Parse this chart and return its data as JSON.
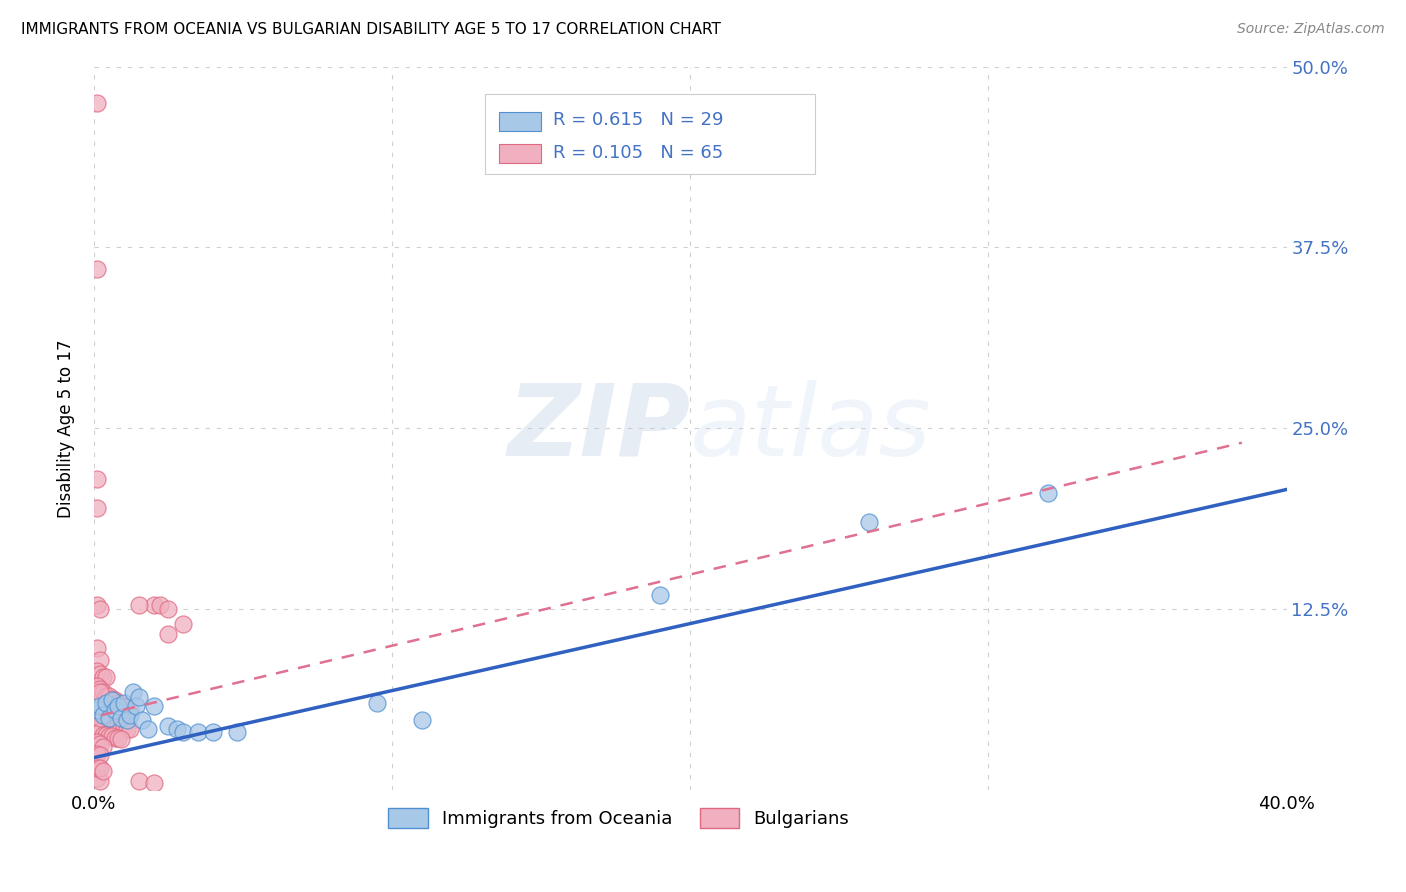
{
  "title": "IMMIGRANTS FROM OCEANIA VS BULGARIAN DISABILITY AGE 5 TO 17 CORRELATION CHART",
  "source": "Source: ZipAtlas.com",
  "ylabel": "Disability Age 5 to 17",
  "legend_label_1": "Immigrants from Oceania",
  "legend_label_2": "Bulgarians",
  "R1": 0.615,
  "N1": 29,
  "R2": 0.105,
  "N2": 65,
  "xlim": [
    0.0,
    0.4
  ],
  "ylim": [
    0.0,
    0.5
  ],
  "xticks": [
    0.0,
    0.1,
    0.2,
    0.3,
    0.4
  ],
  "xtick_labels": [
    "0.0%",
    "",
    "",
    "",
    "40.0%"
  ],
  "yticks": [
    0.0,
    0.125,
    0.25,
    0.375,
    0.5
  ],
  "ytick_labels": [
    "",
    "12.5%",
    "25.0%",
    "37.5%",
    "50.0%"
  ],
  "color_blue": "#a8c8e8",
  "color_pink": "#f0b0c0",
  "color_blue_edge": "#5090d0",
  "color_pink_edge": "#e06880",
  "color_blue_line": "#3060c0",
  "color_pink_line": "#e07090",
  "color_axis_right": "#4472c4",
  "background": "#ffffff",
  "grid_color": "#d0d0d0",
  "scatter_blue": [
    [
      0.001,
      0.055
    ],
    [
      0.002,
      0.058
    ],
    [
      0.003,
      0.052
    ],
    [
      0.004,
      0.06
    ],
    [
      0.005,
      0.05
    ],
    [
      0.006,
      0.062
    ],
    [
      0.007,
      0.055
    ],
    [
      0.008,
      0.058
    ],
    [
      0.009,
      0.05
    ],
    [
      0.01,
      0.06
    ],
    [
      0.011,
      0.048
    ],
    [
      0.012,
      0.052
    ],
    [
      0.013,
      0.068
    ],
    [
      0.014,
      0.058
    ],
    [
      0.015,
      0.064
    ],
    [
      0.016,
      0.048
    ],
    [
      0.018,
      0.042
    ],
    [
      0.02,
      0.058
    ],
    [
      0.025,
      0.044
    ],
    [
      0.028,
      0.042
    ],
    [
      0.03,
      0.04
    ],
    [
      0.035,
      0.04
    ],
    [
      0.04,
      0.04
    ],
    [
      0.048,
      0.04
    ],
    [
      0.095,
      0.06
    ],
    [
      0.11,
      0.048
    ],
    [
      0.19,
      0.135
    ],
    [
      0.26,
      0.185
    ],
    [
      0.32,
      0.205
    ]
  ],
  "scatter_pink": [
    [
      0.001,
      0.475
    ],
    [
      0.001,
      0.36
    ],
    [
      0.001,
      0.215
    ],
    [
      0.001,
      0.195
    ],
    [
      0.001,
      0.128
    ],
    [
      0.002,
      0.125
    ],
    [
      0.001,
      0.098
    ],
    [
      0.002,
      0.09
    ],
    [
      0.001,
      0.082
    ],
    [
      0.002,
      0.08
    ],
    [
      0.003,
      0.078
    ],
    [
      0.004,
      0.078
    ],
    [
      0.001,
      0.072
    ],
    [
      0.002,
      0.07
    ],
    [
      0.003,
      0.068
    ],
    [
      0.004,
      0.065
    ],
    [
      0.005,
      0.065
    ],
    [
      0.006,
      0.063
    ],
    [
      0.007,
      0.062
    ],
    [
      0.008,
      0.06
    ],
    [
      0.009,
      0.058
    ],
    [
      0.01,
      0.057
    ],
    [
      0.011,
      0.057
    ],
    [
      0.012,
      0.055
    ],
    [
      0.001,
      0.053
    ],
    [
      0.002,
      0.052
    ],
    [
      0.003,
      0.05
    ],
    [
      0.004,
      0.05
    ],
    [
      0.005,
      0.048
    ],
    [
      0.006,
      0.047
    ],
    [
      0.007,
      0.046
    ],
    [
      0.008,
      0.045
    ],
    [
      0.009,
      0.044
    ],
    [
      0.01,
      0.044
    ],
    [
      0.011,
      0.042
    ],
    [
      0.012,
      0.042
    ],
    [
      0.001,
      0.04
    ],
    [
      0.002,
      0.04
    ],
    [
      0.003,
      0.038
    ],
    [
      0.004,
      0.038
    ],
    [
      0.005,
      0.037
    ],
    [
      0.006,
      0.037
    ],
    [
      0.007,
      0.036
    ],
    [
      0.008,
      0.036
    ],
    [
      0.009,
      0.035
    ],
    [
      0.001,
      0.033
    ],
    [
      0.002,
      0.032
    ],
    [
      0.003,
      0.03
    ],
    [
      0.001,
      0.025
    ],
    [
      0.002,
      0.024
    ],
    [
      0.001,
      0.008
    ],
    [
      0.002,
      0.006
    ],
    [
      0.015,
      0.006
    ],
    [
      0.02,
      0.005
    ],
    [
      0.02,
      0.128
    ],
    [
      0.022,
      0.128
    ],
    [
      0.025,
      0.125
    ],
    [
      0.025,
      0.108
    ],
    [
      0.03,
      0.115
    ],
    [
      0.001,
      0.015
    ],
    [
      0.002,
      0.015
    ],
    [
      0.003,
      0.013
    ],
    [
      0.002,
      0.068
    ],
    [
      0.015,
      0.128
    ],
    [
      0.002,
      0.05
    ]
  ],
  "trendline_blue": {
    "x_start": -0.005,
    "y_start": 0.02,
    "x_end": 0.405,
    "y_end": 0.21
  },
  "trendline_pink": {
    "x_start": -0.005,
    "y_start": 0.048,
    "x_end": 0.385,
    "y_end": 0.24
  }
}
